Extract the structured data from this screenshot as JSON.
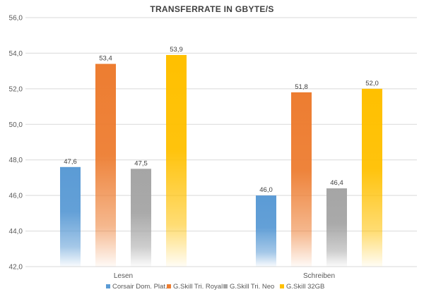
{
  "chart_data": {
    "type": "bar",
    "title": "TRANSFERRATE IN GBYTE/S",
    "xlabel": "",
    "ylabel": "",
    "categories": [
      "Lesen",
      "Schreiben"
    ],
    "series": [
      {
        "name": "Corsair Dom. Plat.",
        "values": [
          47.6,
          46.0
        ],
        "labels": [
          "47,6",
          "46,0"
        ],
        "color": "#5b9bd5"
      },
      {
        "name": "G.Skill Tri. Royal",
        "values": [
          53.4,
          51.8
        ],
        "labels": [
          "53,4",
          "51,8"
        ],
        "color": "#ed7d31"
      },
      {
        "name": "G.Skill Tri. Neo",
        "values": [
          47.5,
          46.4
        ],
        "labels": [
          "47,5",
          "46,4"
        ],
        "color": "#a5a5a5"
      },
      {
        "name": "G.Skill 32GB",
        "values": [
          53.9,
          52.0
        ],
        "labels": [
          "53,9",
          "52,0"
        ],
        "color": "#ffc000"
      }
    ],
    "ylim": [
      42.0,
      56.0
    ],
    "yticks": [
      42.0,
      44.0,
      46.0,
      48.0,
      50.0,
      52.0,
      54.0,
      56.0
    ],
    "ytick_labels": [
      "42,0",
      "44,0",
      "46,0",
      "48,0",
      "50,0",
      "52,0",
      "54,0",
      "56,0"
    ],
    "grid": true,
    "legend": "bottom"
  }
}
